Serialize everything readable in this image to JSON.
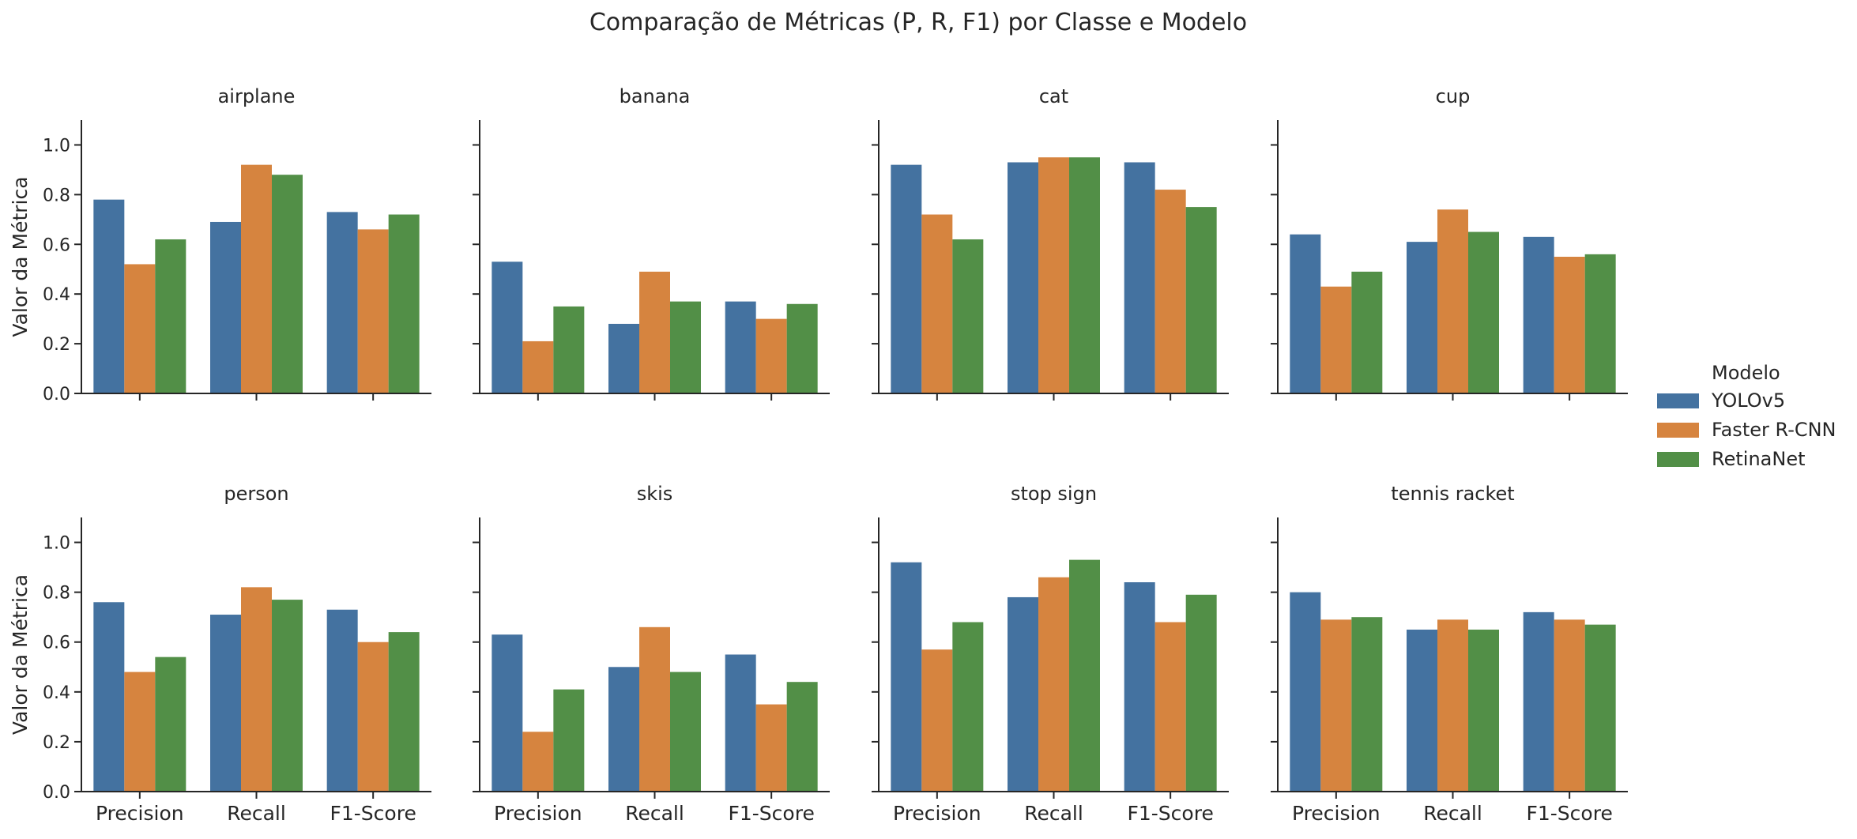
{
  "chart_data": {
    "type": "bar",
    "title": "Comparação de Métricas (P, R, F1) por Classe e Modelo",
    "ylabel": "Valor da Métrica",
    "ylim": [
      0,
      1.1
    ],
    "yticks": [
      "0.0",
      "0.2",
      "0.4",
      "0.6",
      "0.8",
      "1.0"
    ],
    "ytick_values": [
      0.0,
      0.2,
      0.4,
      0.6,
      0.8,
      1.0
    ],
    "categories": [
      "Precision",
      "Recall",
      "F1-Score"
    ],
    "legend": {
      "title": "Modelo",
      "placement": "right",
      "entries": [
        "YOLOv5",
        "Faster R-CNN",
        "RetinaNet"
      ]
    },
    "colors": {
      "YOLOv5": "#4472a0",
      "Faster R-CNN": "#d6843f",
      "RetinaNet": "#528f47"
    },
    "panels": [
      {
        "name": "airplane",
        "series": [
          {
            "name": "YOLOv5",
            "values": [
              0.78,
              0.69,
              0.73
            ]
          },
          {
            "name": "Faster R-CNN",
            "values": [
              0.52,
              0.92,
              0.66
            ]
          },
          {
            "name": "RetinaNet",
            "values": [
              0.62,
              0.88,
              0.72
            ]
          }
        ]
      },
      {
        "name": "banana",
        "series": [
          {
            "name": "YOLOv5",
            "values": [
              0.53,
              0.28,
              0.37
            ]
          },
          {
            "name": "Faster R-CNN",
            "values": [
              0.21,
              0.49,
              0.3
            ]
          },
          {
            "name": "RetinaNet",
            "values": [
              0.35,
              0.37,
              0.36
            ]
          }
        ]
      },
      {
        "name": "cat",
        "series": [
          {
            "name": "YOLOv5",
            "values": [
              0.92,
              0.93,
              0.93
            ]
          },
          {
            "name": "Faster R-CNN",
            "values": [
              0.72,
              0.95,
              0.82
            ]
          },
          {
            "name": "RetinaNet",
            "values": [
              0.62,
              0.95,
              0.75
            ]
          }
        ]
      },
      {
        "name": "cup",
        "series": [
          {
            "name": "YOLOv5",
            "values": [
              0.64,
              0.61,
              0.63
            ]
          },
          {
            "name": "Faster R-CNN",
            "values": [
              0.43,
              0.74,
              0.55
            ]
          },
          {
            "name": "RetinaNet",
            "values": [
              0.49,
              0.65,
              0.56
            ]
          }
        ]
      },
      {
        "name": "person",
        "series": [
          {
            "name": "YOLOv5",
            "values": [
              0.76,
              0.71,
              0.73
            ]
          },
          {
            "name": "Faster R-CNN",
            "values": [
              0.48,
              0.82,
              0.6
            ]
          },
          {
            "name": "RetinaNet",
            "values": [
              0.54,
              0.77,
              0.64
            ]
          }
        ]
      },
      {
        "name": "skis",
        "series": [
          {
            "name": "YOLOv5",
            "values": [
              0.63,
              0.5,
              0.55
            ]
          },
          {
            "name": "Faster R-CNN",
            "values": [
              0.24,
              0.66,
              0.35
            ]
          },
          {
            "name": "RetinaNet",
            "values": [
              0.41,
              0.48,
              0.44
            ]
          }
        ]
      },
      {
        "name": "stop sign",
        "series": [
          {
            "name": "YOLOv5",
            "values": [
              0.92,
              0.78,
              0.84
            ]
          },
          {
            "name": "Faster R-CNN",
            "values": [
              0.57,
              0.86,
              0.68
            ]
          },
          {
            "name": "RetinaNet",
            "values": [
              0.68,
              0.93,
              0.79
            ]
          }
        ]
      },
      {
        "name": "tennis racket",
        "series": [
          {
            "name": "YOLOv5",
            "values": [
              0.8,
              0.65,
              0.72
            ]
          },
          {
            "name": "Faster R-CNN",
            "values": [
              0.69,
              0.69,
              0.69
            ]
          },
          {
            "name": "RetinaNet",
            "values": [
              0.7,
              0.65,
              0.67
            ]
          }
        ]
      }
    ]
  }
}
